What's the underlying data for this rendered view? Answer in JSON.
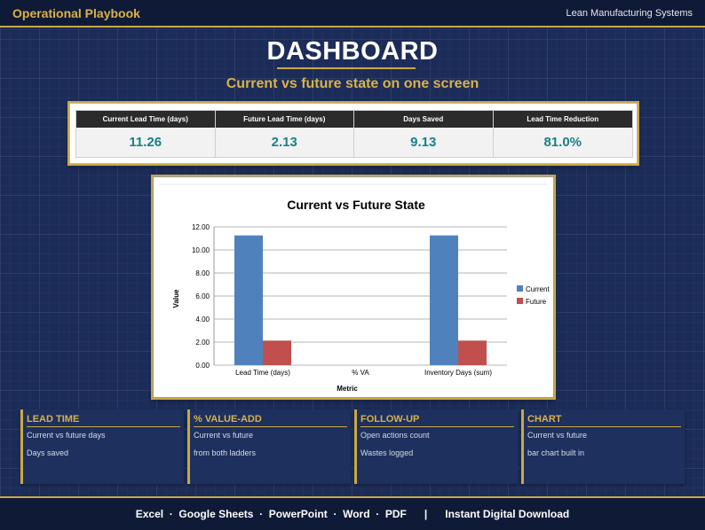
{
  "header": {
    "brand": "Operational Playbook",
    "sub_brand": "Lean Manufacturing Systems"
  },
  "page": {
    "title": "DASHBOARD",
    "subtitle": "Current vs future state on one screen"
  },
  "kpis": [
    {
      "label": "Current Lead Time (days)",
      "value": "11.26"
    },
    {
      "label": "Future Lead Time (days)",
      "value": "2.13"
    },
    {
      "label": "Days Saved",
      "value": "9.13"
    },
    {
      "label": "Lead Time Reduction",
      "value": "81.0%"
    }
  ],
  "chart_data": {
    "type": "bar",
    "title": "Current vs Future State",
    "xlabel": "Metric",
    "ylabel": "Value",
    "categories": [
      "Lead Time (days)",
      "% VA",
      "Inventory Days (sum)"
    ],
    "series": [
      {
        "name": "Current",
        "values": [
          11.26,
          0,
          11.26
        ],
        "color": "#4f81bd"
      },
      {
        "name": "Future",
        "values": [
          2.13,
          0,
          2.13
        ],
        "color": "#c0504d"
      }
    ],
    "ylim": [
      0,
      12
    ],
    "yticks": [
      "0.00",
      "2.00",
      "4.00",
      "6.00",
      "8.00",
      "10.00",
      "12.00"
    ],
    "grid": true,
    "legend": "right"
  },
  "info_cards": [
    {
      "title": "LEAD TIME",
      "line1": "Current vs future days",
      "line2": "Days saved"
    },
    {
      "title": "% VALUE-ADD",
      "line1": "Current vs future",
      "line2": "from both ladders"
    },
    {
      "title": "FOLLOW-UP",
      "line1": "Open actions count",
      "line2": "Wastes logged"
    },
    {
      "title": "CHART",
      "line1": "Current vs future",
      "line2": "bar chart built in"
    }
  ],
  "footer": {
    "text": "Excel  ·  Google Sheets  ·  PowerPoint  ·  Word  ·  PDF      |      Instant Digital Download"
  },
  "colors": {
    "accent_gold": "#c9a845",
    "background": "#1c2c58",
    "kpi_value": "#17808a"
  }
}
